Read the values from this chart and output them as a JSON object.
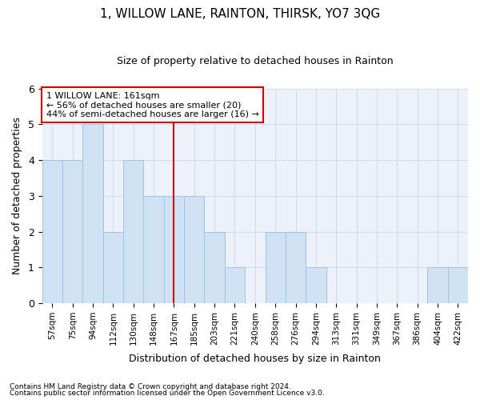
{
  "title": "1, WILLOW LANE, RAINTON, THIRSK, YO7 3QG",
  "subtitle": "Size of property relative to detached houses in Rainton",
  "xlabel": "Distribution of detached houses by size in Rainton",
  "ylabel": "Number of detached properties",
  "categories": [
    "57sqm",
    "75sqm",
    "94sqm",
    "112sqm",
    "130sqm",
    "148sqm",
    "167sqm",
    "185sqm",
    "203sqm",
    "221sqm",
    "240sqm",
    "258sqm",
    "276sqm",
    "294sqm",
    "313sqm",
    "331sqm",
    "349sqm",
    "367sqm",
    "386sqm",
    "404sqm",
    "422sqm"
  ],
  "values": [
    4,
    4,
    5,
    2,
    4,
    3,
    3,
    3,
    2,
    1,
    0,
    2,
    2,
    1,
    0,
    0,
    0,
    0,
    0,
    1,
    1
  ],
  "bar_color": "#cfe2f3",
  "bar_edge_color": "#a0c4e0",
  "vline_x": 6,
  "vline_color": "#cc0000",
  "ylim": [
    0,
    6
  ],
  "yticks": [
    0,
    1,
    2,
    3,
    4,
    5,
    6
  ],
  "annotation_title": "1 WILLOW LANE: 161sqm",
  "annotation_line1": "← 56% of detached houses are smaller (20)",
  "annotation_line2": "44% of semi-detached houses are larger (16) →",
  "annotation_box_color": "#ffffff",
  "annotation_box_edge": "#cc0000",
  "footnote1": "Contains HM Land Registry data © Crown copyright and database right 2024.",
  "footnote2": "Contains public sector information licensed under the Open Government Licence v3.0.",
  "grid_color": "#d0dcea",
  "background_color": "#edf2fa"
}
